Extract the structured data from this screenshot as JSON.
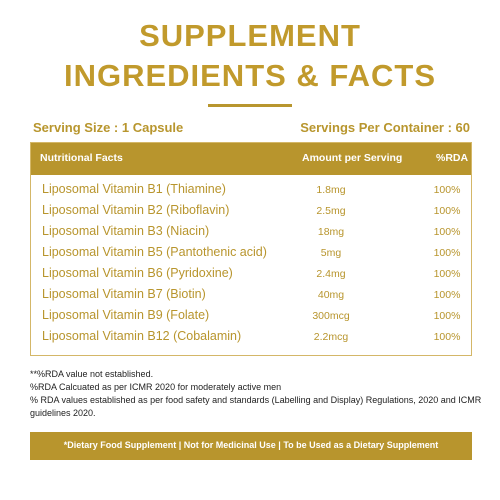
{
  "title": {
    "line1": "SUPPLEMENT",
    "line2": "INGREDIENTS & FACTS"
  },
  "serving": {
    "size": "Serving Size : 1 Capsule",
    "per_container": "Servings Per Container : 60"
  },
  "table": {
    "headers": {
      "name": "Nutritional Facts",
      "amount": "Amount per Serving",
      "rda": "%RDA"
    },
    "rows": [
      {
        "name": "Liposomal Vitamin B1 (Thiamine)",
        "amount": "1.8mg",
        "rda": "100%"
      },
      {
        "name": "Liposomal Vitamin B2 (Riboflavin)",
        "amount": "2.5mg",
        "rda": "100%"
      },
      {
        "name": "Liposomal Vitamin B3 (Niacin)",
        "amount": "18mg",
        "rda": "100%"
      },
      {
        "name": "Liposomal Vitamin B5 (Pantothenic acid)",
        "amount": "5mg",
        "rda": "100%"
      },
      {
        "name": "Liposomal Vitamin B6 (Pyridoxine)",
        "amount": "2.4mg",
        "rda": "100%"
      },
      {
        "name": "Liposomal Vitamin B7 (Biotin)",
        "amount": "40mg",
        "rda": "100%"
      },
      {
        "name": "Liposomal Vitamin B9 (Folate)",
        "amount": "300mcg",
        "rda": "100%"
      },
      {
        "name": "Liposomal Vitamin B12 (Cobalamin)",
        "amount": "2.2mcg",
        "rda": "100%"
      }
    ]
  },
  "notes": {
    "line1": "**%RDA value not established.",
    "line2": "%RDA Calcuated as per ICMR 2020 for moderately active men",
    "line3": "% RDA values established as per food safety and standards (Labelling and Display) Regulations, 2020 and ICMR guidelines 2020."
  },
  "footer": "*Dietary Food Supplement | Not for Medicinal Use | To be Used as a Dietary Supplement",
  "colors": {
    "gold": "#b8952d",
    "title_gold": "#c19a2c",
    "border": "#d4b768",
    "text_dark": "#222222"
  }
}
